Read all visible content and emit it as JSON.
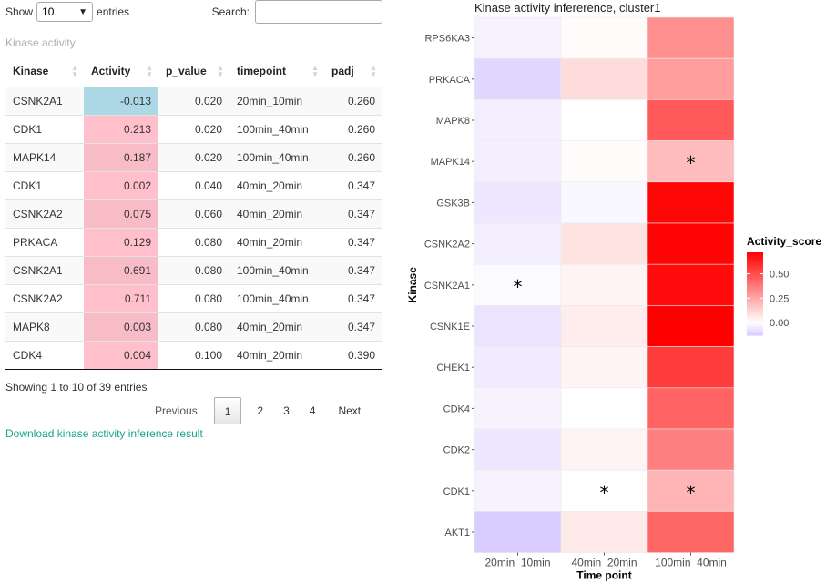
{
  "controls": {
    "show_prefix": "Show",
    "page_length": "10",
    "show_suffix": "entries",
    "search_label": "Search:",
    "search_value": ""
  },
  "table": {
    "caption": "Kinase activity",
    "columns": [
      "Kinase",
      "Activity",
      "p_value",
      "timepoint",
      "padj"
    ],
    "rows": [
      {
        "kinase": "CSNK2A1",
        "activity": "-0.013",
        "p_value": "0.020",
        "timepoint": "20min_10min",
        "padj": "0.260",
        "sign": "neg"
      },
      {
        "kinase": "CDK1",
        "activity": "0.213",
        "p_value": "0.020",
        "timepoint": "100min_40min",
        "padj": "0.260",
        "sign": "pos"
      },
      {
        "kinase": "MAPK14",
        "activity": "0.187",
        "p_value": "0.020",
        "timepoint": "100min_40min",
        "padj": "0.260",
        "sign": "pos"
      },
      {
        "kinase": "CDK1",
        "activity": "0.002",
        "p_value": "0.040",
        "timepoint": "40min_20min",
        "padj": "0.347",
        "sign": "pos"
      },
      {
        "kinase": "CSNK2A2",
        "activity": "0.075",
        "p_value": "0.060",
        "timepoint": "40min_20min",
        "padj": "0.347",
        "sign": "pos"
      },
      {
        "kinase": "PRKACA",
        "activity": "0.129",
        "p_value": "0.080",
        "timepoint": "40min_20min",
        "padj": "0.347",
        "sign": "pos"
      },
      {
        "kinase": "CSNK2A1",
        "activity": "0.691",
        "p_value": "0.080",
        "timepoint": "100min_40min",
        "padj": "0.347",
        "sign": "pos"
      },
      {
        "kinase": "CSNK2A2",
        "activity": "0.711",
        "p_value": "0.080",
        "timepoint": "100min_40min",
        "padj": "0.347",
        "sign": "pos"
      },
      {
        "kinase": "MAPK8",
        "activity": "0.003",
        "p_value": "0.080",
        "timepoint": "40min_20min",
        "padj": "0.347",
        "sign": "pos"
      },
      {
        "kinase": "CDK4",
        "activity": "0.004",
        "p_value": "0.100",
        "timepoint": "40min_20min",
        "padj": "0.390",
        "sign": "pos"
      }
    ],
    "info": "Showing 1 to 10 of 39 entries"
  },
  "pagination": {
    "previous": "Previous",
    "pages": [
      "1",
      "2",
      "3",
      "4"
    ],
    "current": "1",
    "next": "Next"
  },
  "download_link": "Download kinase activity inference result",
  "colors": {
    "negative_cell": "#add8e6",
    "positive_cell": "#ffc0cb",
    "link": "#18a689",
    "low": "#d9ccff",
    "mid": "#ffffff",
    "high": "#ff0000"
  },
  "chart_data": {
    "type": "heatmap",
    "title": "Kinase activity infererence, cluster1",
    "xlabel": "Time point",
    "ylabel": "Kinase",
    "x": [
      "20min_10min",
      "40min_20min",
      "100min_40min"
    ],
    "y": [
      "RPS6KA3",
      "PRKACA",
      "MAPK8",
      "MAPK14",
      "GSK3B",
      "CSNK2A2",
      "CSNK2A1",
      "CSNK1E",
      "CHEK1",
      "CDK4",
      "CDK2",
      "CDK1",
      "AKT1"
    ],
    "values": [
      [
        -0.03,
        0.01,
        0.32
      ],
      [
        -0.1,
        0.1,
        0.28
      ],
      [
        -0.04,
        0.0,
        0.47
      ],
      [
        -0.04,
        0.01,
        0.19
      ],
      [
        -0.06,
        -0.02,
        0.7
      ],
      [
        -0.04,
        0.08,
        0.71
      ],
      [
        -0.013,
        0.03,
        0.69
      ],
      [
        -0.07,
        0.05,
        0.72
      ],
      [
        -0.05,
        0.03,
        0.55
      ],
      [
        -0.03,
        0.004,
        0.44
      ],
      [
        -0.06,
        0.03,
        0.36
      ],
      [
        -0.03,
        0.002,
        0.21
      ],
      [
        -0.13,
        0.06,
        0.43
      ]
    ],
    "significant": [
      {
        "y": "MAPK14",
        "x": "100min_40min"
      },
      {
        "y": "CSNK2A1",
        "x": "20min_10min"
      },
      {
        "y": "CDK1",
        "x": "40min_20min"
      },
      {
        "y": "CDK1",
        "x": "100min_40min"
      }
    ],
    "significance_mark": "*",
    "legend": {
      "title": "Activity_score",
      "ticks": [
        "0.50",
        "0.25",
        "0.00"
      ],
      "tick_values": [
        0.5,
        0.25,
        0.0
      ],
      "range": [
        -0.13,
        0.72
      ],
      "placement": "right"
    }
  }
}
